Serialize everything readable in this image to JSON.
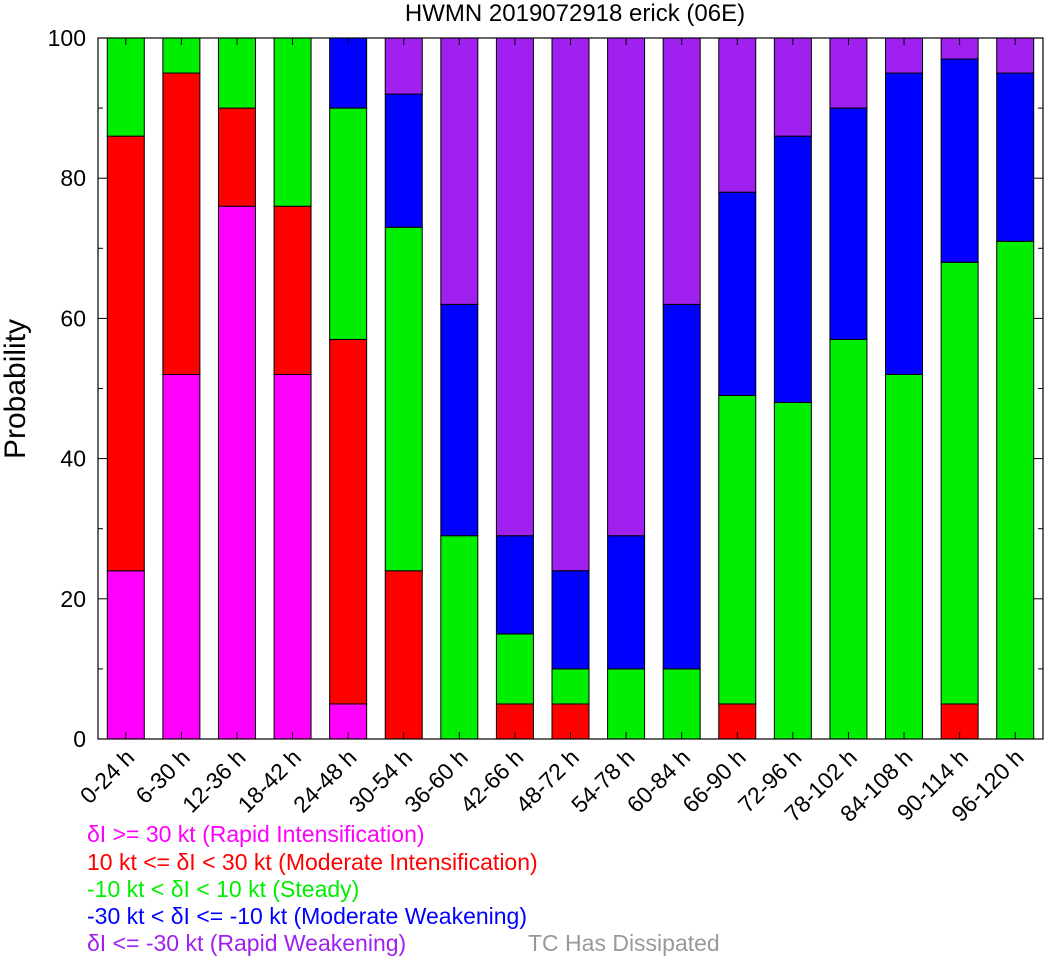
{
  "chart_data": {
    "type": "bar",
    "stacked": true,
    "title": "HWMN 2019072918 erick (06E)",
    "xlabel": "",
    "ylabel": "Probability",
    "ylim": [
      0,
      100
    ],
    "yticks": [
      0,
      20,
      40,
      60,
      80,
      100
    ],
    "grid": false,
    "categories": [
      "0-24 h",
      "6-30 h",
      "12-36 h",
      "18-42 h",
      "24-48 h",
      "30-54 h",
      "36-60 h",
      "42-66 h",
      "48-72 h",
      "54-78 h",
      "60-84 h",
      "66-90 h",
      "72-96 h",
      "78-102 h",
      "84-108 h",
      "90-114 h",
      "96-120 h"
    ],
    "series": [
      {
        "name": "δI >= 30 kt (Rapid Intensification)",
        "color": "#ff00ff",
        "values": [
          24,
          52,
          76,
          52,
          5,
          0,
          0,
          0,
          0,
          0,
          0,
          0,
          0,
          0,
          0,
          0,
          0
        ]
      },
      {
        "name": "10 kt <= δI < 30 kt (Moderate Intensification)",
        "color": "#ff0000",
        "values": [
          62,
          43,
          14,
          24,
          52,
          24,
          0,
          5,
          5,
          0,
          0,
          5,
          0,
          0,
          0,
          5,
          0
        ]
      },
      {
        "name": "-10 kt < δI < 10 kt (Steady)",
        "color": "#00ee00",
        "values": [
          14,
          5,
          10,
          24,
          33,
          49,
          29,
          10,
          5,
          10,
          10,
          44,
          48,
          57,
          52,
          63,
          71
        ]
      },
      {
        "name": "-30 kt < δI <= -10 kt (Moderate Weakening)",
        "color": "#0000ff",
        "values": [
          0,
          0,
          0,
          0,
          10,
          19,
          33,
          14,
          14,
          19,
          52,
          29,
          38,
          33,
          43,
          29,
          24
        ]
      },
      {
        "name": "δI <= -30 kt (Rapid Weakening)",
        "color": "#a020f0",
        "values": [
          0,
          0,
          0,
          0,
          0,
          8,
          38,
          71,
          76,
          71,
          38,
          22,
          14,
          10,
          5,
          3,
          5
        ]
      }
    ],
    "annotations": [
      {
        "text": "TC Has Dissipated",
        "color": "#999999"
      }
    ]
  }
}
